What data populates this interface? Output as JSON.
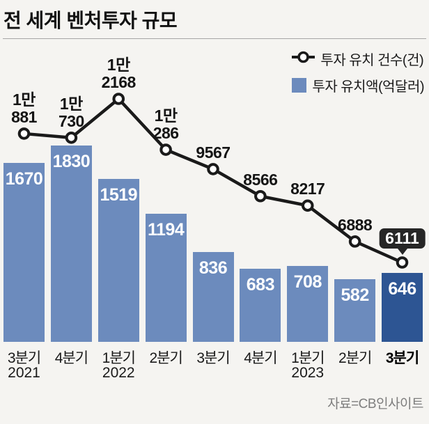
{
  "title": "전 세계 벤처투자 규모",
  "source": "자료=CB인사이트",
  "legend": {
    "line_label": "투자 유치 건수(건)",
    "bar_label": "투자 유치액(억달러)"
  },
  "colors": {
    "background": "#f5f4f1",
    "bar": "#6c8bbd",
    "bar_highlight": "#2d5593",
    "line": "#1a1a1a",
    "marker_fill": "#ffffff",
    "callout_bg": "#262626",
    "callout_text": "#ffffff",
    "bar_value_text": "#ffffff"
  },
  "chart_data": {
    "type": "bar+line",
    "title": "전 세계 벤처투자 규모",
    "categories": [
      {
        "quarter": "3분기",
        "year": "2021",
        "bold": false
      },
      {
        "quarter": "4분기",
        "year": "",
        "bold": false
      },
      {
        "quarter": "1분기",
        "year": "2022",
        "bold": false
      },
      {
        "quarter": "2분기",
        "year": "",
        "bold": false
      },
      {
        "quarter": "3분기",
        "year": "",
        "bold": false
      },
      {
        "quarter": "4분기",
        "year": "",
        "bold": false
      },
      {
        "quarter": "1분기",
        "year": "2023",
        "bold": false
      },
      {
        "quarter": "2분기",
        "year": "",
        "bold": false
      },
      {
        "quarter": "3분기",
        "year": "",
        "bold": true
      }
    ],
    "series": [
      {
        "name": "투자 유치액(억달러)",
        "type": "bar",
        "values": [
          1670,
          1830,
          1519,
          1194,
          836,
          683,
          708,
          582,
          646
        ],
        "value_labels": [
          "1670",
          "1830",
          "1519",
          "1194",
          "836",
          "683",
          "708",
          "582",
          "646"
        ],
        "highlight_index": 8
      },
      {
        "name": "투자 유치 건수(건)",
        "type": "line",
        "values": [
          10881,
          10730,
          12168,
          10286,
          9567,
          8566,
          8217,
          6888,
          6111
        ],
        "point_labels": [
          [
            "1만",
            "881"
          ],
          [
            "1만",
            "730"
          ],
          [
            "1만",
            "2168"
          ],
          [
            "1만",
            "286"
          ],
          [
            "9567"
          ],
          [
            "8566"
          ],
          [
            "8217"
          ],
          [
            "6888"
          ],
          [
            "6111"
          ]
        ],
        "callout_index": 8
      }
    ],
    "legend_position": "top-right",
    "grid": false,
    "axes_visible": false
  }
}
